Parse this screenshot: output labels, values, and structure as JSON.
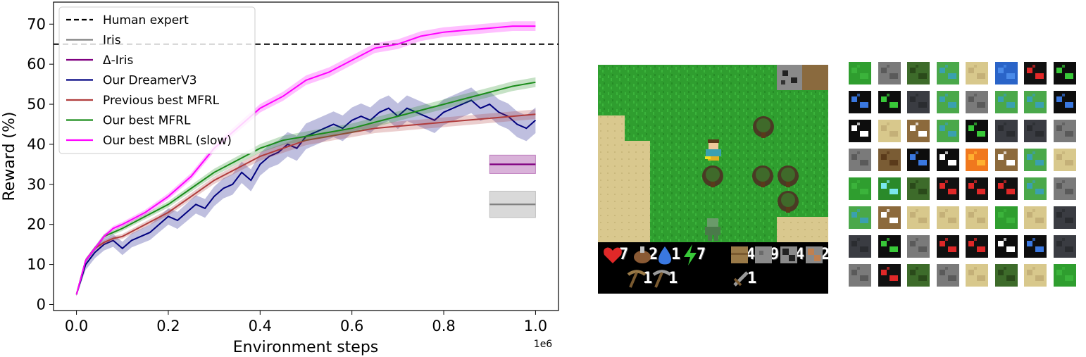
{
  "chart_data": {
    "type": "line",
    "xlabel": "Environment steps",
    "ylabel": "Reward (%)",
    "x_scale_label": "1e6",
    "xlim": [
      -0.05,
      1.05
    ],
    "ylim": [
      -1.5,
      75.5
    ],
    "xticks": [
      0.0,
      0.2,
      0.4,
      0.6,
      0.8,
      1.0
    ],
    "xtick_labels": [
      "0.0",
      "0.2",
      "0.4",
      "0.6",
      "0.8",
      "1.0"
    ],
    "yticks": [
      0,
      10,
      20,
      30,
      40,
      50,
      60,
      70
    ],
    "ytick_labels": [
      "0",
      "10",
      "20",
      "30",
      "40",
      "50",
      "60",
      "70"
    ],
    "legend_position": "top-left",
    "grid": false,
    "reference_line": {
      "name": "Human expert",
      "value": 65,
      "color": "#000000",
      "style": "dashed"
    },
    "final_markers": [
      {
        "name": "Iris",
        "x_range": [
          0.9,
          1.0
        ],
        "value": 25,
        "band": [
          21.7,
          28.3
        ],
        "color": "#808080"
      },
      {
        "name": "Δ-Iris",
        "x_range": [
          0.9,
          1.0
        ],
        "value": 35,
        "band": [
          32.7,
          37.3
        ],
        "color": "#800080"
      }
    ],
    "series": [
      {
        "name": "Our DreamerV3",
        "color": "#00007f",
        "x": [
          0.0,
          0.02,
          0.04,
          0.06,
          0.08,
          0.1,
          0.12,
          0.14,
          0.16,
          0.18,
          0.2,
          0.22,
          0.24,
          0.26,
          0.28,
          0.3,
          0.32,
          0.34,
          0.36,
          0.38,
          0.4,
          0.42,
          0.44,
          0.46,
          0.48,
          0.5,
          0.52,
          0.54,
          0.56,
          0.58,
          0.6,
          0.62,
          0.64,
          0.66,
          0.68,
          0.7,
          0.72,
          0.74,
          0.76,
          0.78,
          0.8,
          0.82,
          0.84,
          0.86,
          0.88,
          0.9,
          0.92,
          0.94,
          0.96,
          0.98,
          1.0
        ],
        "y": [
          2.5,
          10,
          13,
          15,
          16,
          14,
          16,
          17,
          18,
          20,
          22,
          21,
          23,
          25,
          24,
          27,
          29,
          30,
          33,
          31,
          35,
          37,
          38,
          40,
          39,
          42,
          43,
          44,
          45,
          44,
          46,
          47,
          46,
          48,
          49,
          47,
          49,
          48,
          47,
          46,
          48,
          49,
          50,
          51,
          49,
          50,
          48,
          47,
          45,
          44,
          46
        ]
      },
      {
        "name": "Previous best MFRL",
        "color": "#b03c3c",
        "x": [
          0.0,
          0.02,
          0.04,
          0.06,
          0.08,
          0.1,
          0.15,
          0.2,
          0.25,
          0.3,
          0.35,
          0.4,
          0.45,
          0.5,
          0.55,
          0.6,
          0.65,
          0.7,
          0.75,
          0.8,
          0.85,
          0.9,
          0.95,
          1.0
        ],
        "y": [
          2.5,
          11,
          14,
          15.5,
          16.5,
          17,
          20,
          23,
          27,
          31,
          34,
          37,
          39,
          41,
          42,
          43,
          44,
          44.5,
          45,
          45.5,
          46,
          46.5,
          47,
          47.5
        ]
      },
      {
        "name": "Our best MFRL",
        "color": "#1a8c1a",
        "x": [
          0.0,
          0.02,
          0.04,
          0.06,
          0.08,
          0.1,
          0.15,
          0.2,
          0.25,
          0.3,
          0.35,
          0.4,
          0.45,
          0.5,
          0.55,
          0.6,
          0.65,
          0.7,
          0.75,
          0.8,
          0.85,
          0.9,
          0.95,
          1.0
        ],
        "y": [
          2.5,
          11,
          14,
          17,
          18,
          19,
          22,
          25,
          29,
          33,
          36,
          39,
          41,
          42,
          43,
          44,
          45.5,
          47,
          48.5,
          50,
          51.5,
          53,
          54.5,
          55.5
        ]
      },
      {
        "name": "Our best MBRL (slow)",
        "color": "#ff00ff",
        "x": [
          0.0,
          0.02,
          0.04,
          0.06,
          0.08,
          0.1,
          0.15,
          0.2,
          0.25,
          0.3,
          0.35,
          0.4,
          0.45,
          0.5,
          0.55,
          0.6,
          0.65,
          0.7,
          0.75,
          0.8,
          0.85,
          0.9,
          0.95,
          1.0
        ],
        "y": [
          2.5,
          11,
          14,
          17,
          19,
          20,
          23,
          27,
          32,
          39,
          44,
          49,
          52,
          56,
          58,
          61,
          64,
          65,
          67,
          68,
          68.5,
          69,
          69.5,
          69.5
        ]
      }
    ],
    "legend_entries": [
      {
        "label": "Human expert",
        "color": "#000000",
        "style": "dashed"
      },
      {
        "label": "Iris",
        "color": "#808080",
        "style": "solid"
      },
      {
        "label": "Δ-Iris",
        "color": "#800080",
        "style": "solid"
      },
      {
        "label": "Our DreamerV3",
        "color": "#00007f",
        "style": "solid"
      },
      {
        "label": "Previous best MFRL",
        "color": "#b03c3c",
        "style": "solid"
      },
      {
        "label": "Our best MFRL",
        "color": "#1a8c1a",
        "style": "solid"
      },
      {
        "label": "Our best MBRL (slow)",
        "color": "#ff00ff",
        "style": "solid"
      }
    ]
  },
  "game": {
    "inventory_row1": [
      {
        "icon": "heart-icon",
        "count": "7"
      },
      {
        "icon": "food-icon",
        "count": "2"
      },
      {
        "icon": "drink-icon",
        "count": "1"
      },
      {
        "icon": "energy-icon",
        "count": "7"
      },
      {
        "icon": "wood-icon",
        "count": "4"
      },
      {
        "icon": "stone-icon",
        "count": "9"
      },
      {
        "icon": "coal-icon",
        "count": "4"
      },
      {
        "icon": "iron-icon",
        "count": "2"
      }
    ],
    "inventory_row2": [
      {
        "icon": "wood-pickaxe-icon",
        "count": "1"
      },
      {
        "icon": "stone-pickaxe-icon",
        "count": "1"
      },
      {
        "icon": "wood-sword-icon",
        "count": "1"
      }
    ]
  },
  "tiles": {
    "kinds": [
      "grass",
      "stone",
      "tree",
      "player",
      "sand",
      "water",
      "health",
      "sapling",
      "drink",
      "sapling",
      "dark",
      "player",
      "stone",
      "player",
      "player",
      "drink",
      "wood-pick",
      "sand",
      "digit",
      "player",
      "sapling",
      "dark",
      "dark",
      "stone",
      "stone",
      "table",
      "drink",
      "wood-pick",
      "lava",
      "digit",
      "player",
      "sand",
      "grass",
      "diamond",
      "tree",
      "health",
      "health",
      "health",
      "player",
      "stone",
      "player",
      "digit",
      "sand",
      "sand",
      "sand",
      "grass",
      "sand",
      "dark",
      "dark",
      "sapling",
      "stone",
      "health",
      "health",
      "wood-pick",
      "drink",
      "dark",
      "stone",
      "health",
      "tree",
      "stone",
      "sand",
      "tree",
      "sand",
      "grass"
    ],
    "palette": {
      "grass": "#2f9e2f",
      "stone": "#7a7a7a",
      "tree": "#3d6b2a",
      "player": "#4aa84a",
      "sand": "#d8c88c",
      "water": "#2a64c8",
      "health": "#111111",
      "sapling": "#0d0d0d",
      "drink": "#0d0d0d",
      "dark": "#3a3c42",
      "wood-pick": "#0d0d0d",
      "digit": "#8c6a3c",
      "lava": "#f0781e",
      "diamond": "#2a8a2a",
      "table": "#7a5c34"
    }
  }
}
